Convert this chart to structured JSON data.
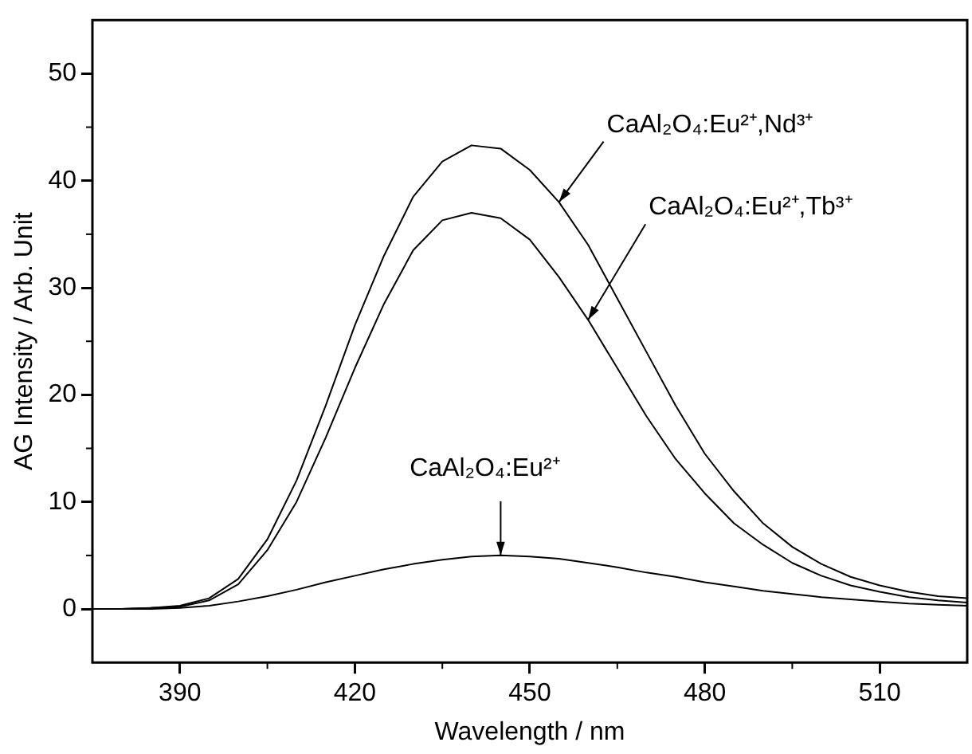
{
  "chart_data": {
    "type": "line",
    "xlabel": "Wavelength / nm",
    "ylabel": "AG Intensity / Arb. Unit",
    "x": [
      375,
      380,
      385,
      390,
      395,
      400,
      405,
      410,
      415,
      420,
      425,
      430,
      435,
      440,
      445,
      450,
      455,
      460,
      465,
      470,
      475,
      480,
      485,
      490,
      495,
      500,
      505,
      510,
      515,
      520,
      525
    ],
    "series": [
      {
        "color": "#000000",
        "values": [
          0,
          0,
          0.1,
          0.3,
          1,
          2.8,
          6.5,
          12,
          19,
          26.5,
          33,
          38.5,
          41.8,
          43.3,
          43,
          41,
          38,
          34,
          29,
          24,
          19,
          14.5,
          11,
          8,
          5.8,
          4.2,
          3,
          2.2,
          1.6,
          1.2,
          1
        ]
      },
      {
        "color": "#000000",
        "values": [
          0,
          0,
          0.1,
          0.2,
          0.8,
          2.3,
          5.5,
          10,
          16,
          22.5,
          28.5,
          33.5,
          36.3,
          37,
          36.5,
          34.5,
          31,
          27,
          22.5,
          18,
          14,
          10.8,
          8,
          6,
          4.3,
          3.1,
          2.2,
          1.6,
          1.1,
          0.8,
          0.6
        ]
      },
      {
        "color": "#000000",
        "values": [
          0,
          0,
          0,
          0.1,
          0.3,
          0.7,
          1.2,
          1.8,
          2.5,
          3.1,
          3.7,
          4.2,
          4.6,
          4.9,
          5,
          4.9,
          4.7,
          4.3,
          3.9,
          3.4,
          3,
          2.5,
          2.1,
          1.7,
          1.4,
          1.1,
          0.9,
          0.7,
          0.5,
          0.4,
          0.3
        ]
      }
    ],
    "annotations": [
      {
        "text": "CaAl₂O₄:Eu²⁺,Nd³⁺",
        "x": 455,
        "y": 38
      },
      {
        "text": "CaAl₂O₄:Eu²⁺,Tb³⁺",
        "x": 460,
        "y": 27
      },
      {
        "text": "CaAl₂O₄:Eu²⁺",
        "x": 445,
        "y": 5
      }
    ],
    "xlim": [
      375,
      525
    ],
    "xticks": [
      390,
      420,
      450,
      480,
      510
    ],
    "ylim": [
      -5,
      55
    ],
    "yticks": [
      0,
      10,
      20,
      30,
      40,
      50
    ],
    "grid": false,
    "legend": false,
    "marker": "none",
    "line_style": "solid"
  }
}
